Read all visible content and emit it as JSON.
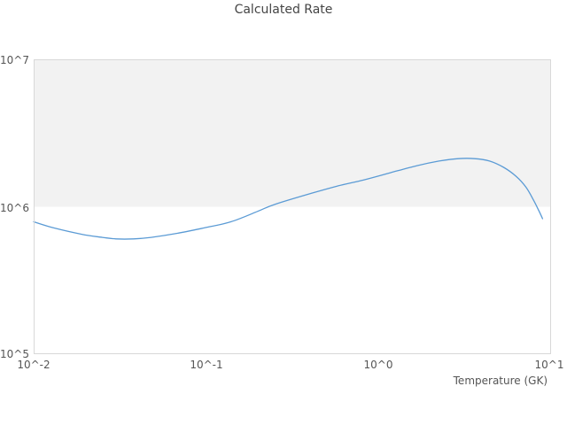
{
  "chart_data": {
    "type": "line",
    "title": "Calculated Rate",
    "xlabel": "Temperature (GK)",
    "ylabel": "",
    "x_scale": "log",
    "y_scale": "log",
    "xlim": [
      0.01,
      10
    ],
    "ylim": [
      100000,
      10000000
    ],
    "x_tick_labels": [
      "10^-2",
      "10^-1",
      "10^0",
      "10^1"
    ],
    "y_tick_labels": [
      "10^5",
      "10^6",
      "10^7"
    ],
    "grid": "off",
    "legend": "none",
    "decade_band": {
      "y_from": 1000000,
      "y_to": 10000000,
      "color": "#f2f2f2"
    },
    "series": [
      {
        "name": "calculated_rate",
        "color": "#5b9bd5",
        "x": [
          0.01,
          0.013,
          0.019,
          0.025,
          0.03,
          0.038,
          0.048,
          0.068,
          0.098,
          0.139,
          0.199,
          0.251,
          0.404,
          0.575,
          0.82,
          1.17,
          1.67,
          2.24,
          2.9,
          3.6,
          4.4,
          5.31,
          6.27,
          7.15,
          7.94,
          8.53,
          8.93
        ],
        "y": [
          790000,
          720000,
          650000,
          620000,
          605000,
          605000,
          620000,
          660000,
          720000,
          790000,
          930000,
          1040000,
          1230000,
          1380000,
          1520000,
          1700000,
          1900000,
          2040000,
          2120000,
          2120000,
          2040000,
          1850000,
          1610000,
          1360000,
          1100000,
          930000,
          830000
        ]
      }
    ]
  },
  "colors": {
    "frame": "#d8d8d8",
    "band": "#f2f2f2",
    "line": "#5b9bd5",
    "title_text": "#454545",
    "tick_text": "#555555",
    "background": "#ffffff"
  }
}
